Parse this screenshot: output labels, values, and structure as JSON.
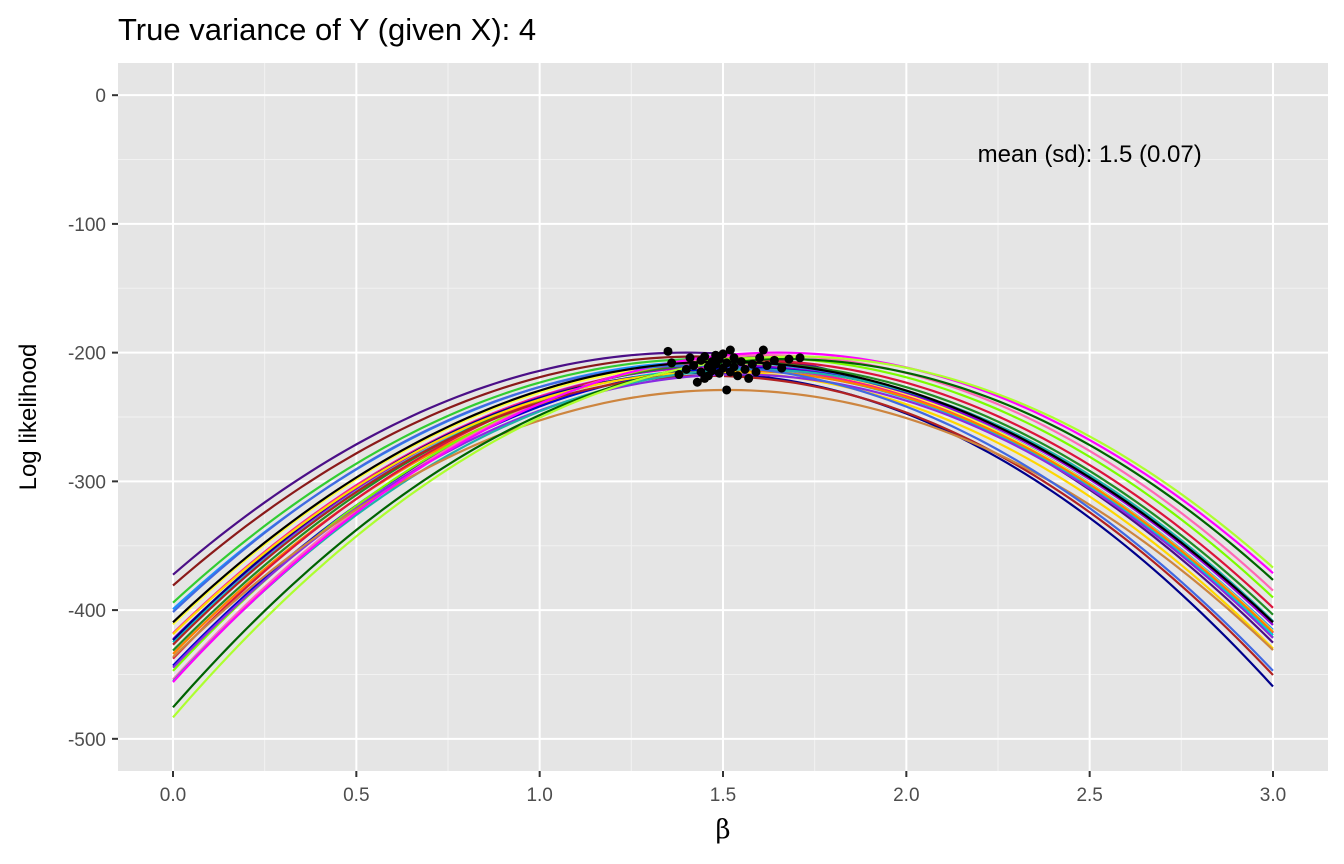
{
  "chart_data": {
    "type": "line",
    "title": "True variance of Y (given X): 4",
    "xlabel": "β",
    "ylabel": "Log likelihood",
    "xlim": [
      -0.15,
      3.15
    ],
    "ylim": [
      -525,
      25
    ],
    "x_ticks": [
      0.0,
      0.5,
      1.0,
      1.5,
      2.0,
      2.5,
      3.0
    ],
    "x_tick_labels": [
      "0.0",
      "0.5",
      "1.0",
      "1.5",
      "2.0",
      "2.5",
      "3.0"
    ],
    "y_ticks": [
      0,
      -100,
      -200,
      -300,
      -400,
      -500
    ],
    "y_tick_labels": [
      "0",
      "-100",
      "-200",
      "-300",
      "-400",
      "-500"
    ],
    "vline_x": 1.5,
    "grid": true,
    "legend": "none",
    "background": "#e5e5e5",
    "annotation": {
      "text": "mean (sd): 1.5 (0.07)",
      "x": 2.5,
      "y": -52
    },
    "series_colors": [
      "#4b0f87",
      "#8b1a1a",
      "#32cd32",
      "#1e90ff",
      "#ffff33",
      "#ff1493",
      "#00ced1",
      "#9400d3",
      "#ff7f00",
      "#228b22",
      "#0000cd",
      "#dc143c",
      "#7cfc00",
      "#ff69b4",
      "#00008b",
      "#b22222",
      "#ffd700",
      "#8a2be2",
      "#20b2aa",
      "#cd853f",
      "#ff00ff",
      "#006400",
      "#4169e1",
      "#adff2f",
      "#000000"
    ],
    "curve_formula": "loglik = peak - curvature * (β - peak_x)^2",
    "curves": [
      {
        "peak_x": 1.4,
        "peak": -200,
        "curvature": 88,
        "color": "#4b0f87"
      },
      {
        "peak_x": 1.43,
        "peak": -203,
        "curvature": 87,
        "color": "#8b1a1a"
      },
      {
        "peak_x": 1.45,
        "peak": -205,
        "curvature": 90,
        "color": "#32cd32"
      },
      {
        "peak_x": 1.47,
        "peak": -207,
        "curvature": 89,
        "color": "#1e90ff"
      },
      {
        "peak_x": 1.49,
        "peak": -209,
        "curvature": 91,
        "color": "#ffff33"
      },
      {
        "peak_x": 1.5,
        "peak": -211,
        "curvature": 92,
        "color": "#ff1493"
      },
      {
        "peak_x": 1.51,
        "peak": -213,
        "curvature": 93,
        "color": "#00ced1"
      },
      {
        "peak_x": 1.52,
        "peak": -210,
        "curvature": 92,
        "color": "#9400d3"
      },
      {
        "peak_x": 1.53,
        "peak": -214,
        "curvature": 94,
        "color": "#ff7f00"
      },
      {
        "peak_x": 1.55,
        "peak": -208,
        "curvature": 93,
        "color": "#228b22"
      },
      {
        "peak_x": 1.56,
        "peak": -212,
        "curvature": 95,
        "color": "#0000cd"
      },
      {
        "peak_x": 1.57,
        "peak": -206,
        "curvature": 94,
        "color": "#dc143c"
      },
      {
        "peak_x": 1.6,
        "peak": -204,
        "curvature": 95,
        "color": "#7cfc00"
      },
      {
        "peak_x": 1.62,
        "peak": -202,
        "curvature": 96,
        "color": "#ff69b4"
      },
      {
        "peak_x": 1.44,
        "peak": -216,
        "curvature": 100,
        "color": "#00008b"
      },
      {
        "peak_x": 1.46,
        "peak": -218,
        "curvature": 98,
        "color": "#b22222"
      },
      {
        "peak_x": 1.48,
        "peak": -215,
        "curvature": 93,
        "color": "#ffd700"
      },
      {
        "peak_x": 1.54,
        "peak": -217,
        "curvature": 96,
        "color": "#8a2be2"
      },
      {
        "peak_x": 1.58,
        "peak": -213,
        "curvature": 97,
        "color": "#20b2aa"
      },
      {
        "peak_x": 1.51,
        "peak": -229,
        "curvature": 91,
        "color": "#cd853f"
      },
      {
        "peak_x": 1.65,
        "peak": -200,
        "curvature": 94,
        "color": "#ff00ff"
      },
      {
        "peak_x": 1.67,
        "peak": -205,
        "curvature": 97,
        "color": "#006400"
      },
      {
        "peak_x": 1.42,
        "peak": -210,
        "curvature": 95,
        "color": "#4169e1"
      },
      {
        "peak_x": 1.7,
        "peak": -203,
        "curvature": 97,
        "color": "#adff2f"
      },
      {
        "peak_x": 1.5,
        "peak": -207,
        "curvature": 90,
        "color": "#000000"
      }
    ],
    "mle_points": [
      {
        "x": 1.35,
        "y": -199
      },
      {
        "x": 1.36,
        "y": -208
      },
      {
        "x": 1.38,
        "y": -217
      },
      {
        "x": 1.4,
        "y": -213
      },
      {
        "x": 1.41,
        "y": -204
      },
      {
        "x": 1.42,
        "y": -210
      },
      {
        "x": 1.43,
        "y": -223
      },
      {
        "x": 1.44,
        "y": -206
      },
      {
        "x": 1.44,
        "y": -215
      },
      {
        "x": 1.45,
        "y": -220
      },
      {
        "x": 1.45,
        "y": -203
      },
      {
        "x": 1.46,
        "y": -211
      },
      {
        "x": 1.46,
        "y": -218
      },
      {
        "x": 1.47,
        "y": -207
      },
      {
        "x": 1.47,
        "y": -214
      },
      {
        "x": 1.48,
        "y": -202
      },
      {
        "x": 1.48,
        "y": -209
      },
      {
        "x": 1.49,
        "y": -216
      },
      {
        "x": 1.49,
        "y": -205
      },
      {
        "x": 1.5,
        "y": -212
      },
      {
        "x": 1.5,
        "y": -201
      },
      {
        "x": 1.51,
        "y": -229
      },
      {
        "x": 1.51,
        "y": -208
      },
      {
        "x": 1.52,
        "y": -198
      },
      {
        "x": 1.52,
        "y": -215
      },
      {
        "x": 1.53,
        "y": -204
      },
      {
        "x": 1.53,
        "y": -211
      },
      {
        "x": 1.54,
        "y": -218
      },
      {
        "x": 1.55,
        "y": -207
      },
      {
        "x": 1.56,
        "y": -213
      },
      {
        "x": 1.57,
        "y": -220
      },
      {
        "x": 1.58,
        "y": -209
      },
      {
        "x": 1.59,
        "y": -215
      },
      {
        "x": 1.6,
        "y": -204
      },
      {
        "x": 1.61,
        "y": -198
      },
      {
        "x": 1.62,
        "y": -210
      },
      {
        "x": 1.64,
        "y": -206
      },
      {
        "x": 1.66,
        "y": -212
      },
      {
        "x": 1.68,
        "y": -205
      },
      {
        "x": 1.71,
        "y": -204
      }
    ]
  }
}
